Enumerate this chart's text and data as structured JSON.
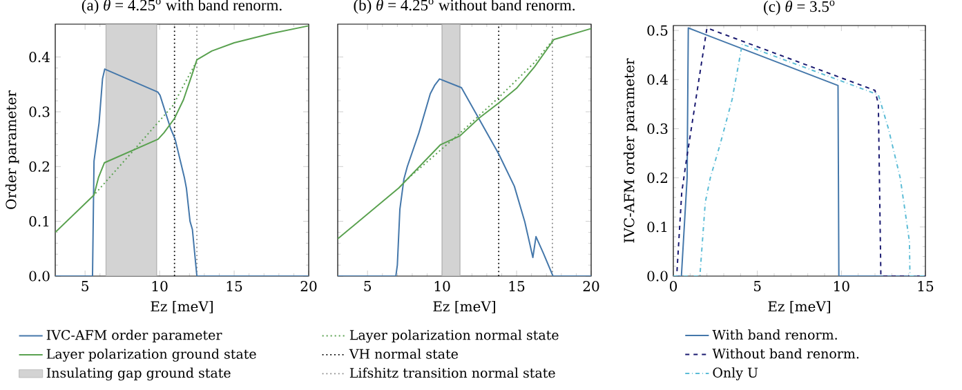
{
  "chart_data": [
    {
      "type": "line",
      "title": "(a) *θ* = 4.25$^{o}$ with band renorm.",
      "xlabel": "Ez [meV]",
      "ylabel": "Order parameter",
      "xlim": [
        3,
        20
      ],
      "ylim": [
        0,
        0.46
      ],
      "xticks": [
        5,
        10,
        15,
        20
      ],
      "yticks": [
        {
          "value": 0,
          "label": "0.0"
        },
        0.1,
        0.2,
        0.3,
        0.4
      ],
      "legend": "bottom",
      "series": [
        {
          "name": "IVC-AFM order parameter",
          "color": "#4477aa",
          "line_style": "solid",
          "x": [
            3,
            5.5,
            5.6,
            5.94,
            6.17,
            6.32,
            9.88,
            10.03,
            10.73,
            11.04,
            11.66,
            11.8,
            12.04,
            12.2,
            12.5,
            20
          ],
          "values": [
            0,
            0,
            0.21,
            0.28,
            0.36,
            0.378,
            0.336,
            0.33,
            0.27,
            0.25,
            0.18,
            0.16,
            0.1,
            0.085,
            0,
            0
          ]
        },
        {
          "name": "Layer polarization ground state",
          "color": "#59a14f",
          "line_style": "solid",
          "x": [
            3,
            5.6,
            5.9,
            6.3,
            9.9,
            10.3,
            11.0,
            11.6,
            12.2,
            12.5,
            13.5,
            15,
            17.5,
            20
          ],
          "values": [
            0.08,
            0.148,
            0.18,
            0.207,
            0.25,
            0.262,
            0.288,
            0.322,
            0.37,
            0.395,
            0.411,
            0.426,
            0.443,
            0.457
          ]
        },
        {
          "name": "Layer polarization normal state",
          "color": "#59a14f",
          "line_style": "dotted",
          "x": [
            5.7,
            8.56,
            10.88,
            12.4
          ],
          "values": [
            0.151,
            0.239,
            0.311,
            0.388
          ]
        }
      ],
      "bands": [
        {
          "axis": "x",
          "from": 6.4,
          "to": 9.8,
          "label": "Insulating gap ground state",
          "color": "#d3d3d3"
        }
      ],
      "ref_lines": [
        {
          "axis": "x",
          "value": 11.0,
          "label": "VH normal state",
          "color": "#000000",
          "line_style": "dotted"
        },
        {
          "axis": "x",
          "value": 12.5,
          "label": "Lifshitz transition normal state",
          "color": "#888888",
          "line_style": "dotted"
        }
      ]
    },
    {
      "type": "line",
      "title": "(b) *θ* = 4.25$^{o}$ without band renorm.",
      "xlabel": "Ez [meV]",
      "xlim": [
        3,
        20
      ],
      "ylim": [
        0,
        0.46
      ],
      "xticks": [
        5,
        10,
        15,
        20
      ],
      "yticks": [
        0,
        0.1,
        0.2,
        0.3,
        0.4
      ],
      "tick_labels": "x",
      "series": [
        {
          "color": "#4477aa",
          "line_style": "solid",
          "x": [
            3,
            6.9,
            7.0,
            7.17,
            7.44,
            7.67,
            8.44,
            9.21,
            9.52,
            9.83,
            11.3,
            12.46,
            13.8,
            14.85,
            15.55,
            16.09,
            16.3,
            16.79,
            17.44,
            20
          ],
          "values": [
            0,
            0,
            0.02,
            0.122,
            0.177,
            0.2,
            0.261,
            0.333,
            0.349,
            0.36,
            0.344,
            0.288,
            0.223,
            0.164,
            0.099,
            0.034,
            0.072,
            0.042,
            0,
            0
          ]
        },
        {
          "color": "#59a14f",
          "line_style": "solid",
          "x": [
            3,
            7.1,
            9.9,
            11.2,
            12.5,
            13.8,
            15,
            16.2,
            17.5,
            20
          ],
          "values": [
            0.068,
            0.161,
            0.24,
            0.256,
            0.289,
            0.316,
            0.343,
            0.382,
            0.432,
            0.452
          ]
        },
        {
          "color": "#59a14f",
          "line_style": "dotted",
          "x": [
            7.5,
            11.2,
            13.8,
            16.2,
            17.4
          ],
          "values": [
            0.173,
            0.261,
            0.326,
            0.39,
            0.43
          ]
        }
      ],
      "bands": [
        {
          "axis": "x",
          "from": 10.0,
          "to": 11.2,
          "color": "#d3d3d3"
        }
      ],
      "ref_lines": [
        {
          "axis": "x",
          "value": 13.8,
          "color": "#000000",
          "line_style": "dotted"
        },
        {
          "axis": "x",
          "value": 17.4,
          "color": "#888888",
          "line_style": "dotted"
        }
      ]
    },
    {
      "type": "line",
      "title": "(c) *θ* = 3.5$^{o}$",
      "xlabel": "Ez [meV]",
      "ylabel": "IVC-AFM order parameter",
      "xlim": [
        0,
        15
      ],
      "ylim": [
        0,
        0.51
      ],
      "xticks": [
        0,
        5,
        10,
        15
      ],
      "yticks": [
        {
          "value": 0,
          "label": "0.0"
        },
        0.1,
        0.2,
        0.3,
        0.4,
        0.5
      ],
      "legend": "bottom",
      "series": [
        {
          "name": "With band renorm.",
          "color": "#4477aa",
          "line_style": "solid",
          "x": [
            0,
            0.48,
            0.82,
            0.89,
            9.8,
            9.85,
            15
          ],
          "values": [
            0,
            0,
            0.2,
            0.505,
            0.388,
            0,
            0
          ]
        },
        {
          "name": "Without band renorm.",
          "color": "#191970",
          "line_style": "dashed",
          "x": [
            0,
            0.2,
            0.5,
            0.75,
            2.0,
            12.0,
            12.2,
            12.35,
            15
          ],
          "values": [
            0,
            0,
            0.17,
            0.23,
            0.505,
            0.378,
            0.35,
            0,
            0
          ]
        },
        {
          "name": "Only U",
          "color": "#5bbcd6",
          "line_style": "dashdot",
          "x": [
            0,
            1.58,
            1.9,
            2.2,
            2.8,
            3.5,
            4.1,
            12.2,
            12.8,
            13.5,
            13.8,
            14.05,
            14.08,
            15
          ],
          "values": [
            0,
            0,
            0.15,
            0.2,
            0.27,
            0.36,
            0.472,
            0.369,
            0.3,
            0.2,
            0.13,
            0.07,
            0,
            0
          ]
        }
      ]
    }
  ]
}
